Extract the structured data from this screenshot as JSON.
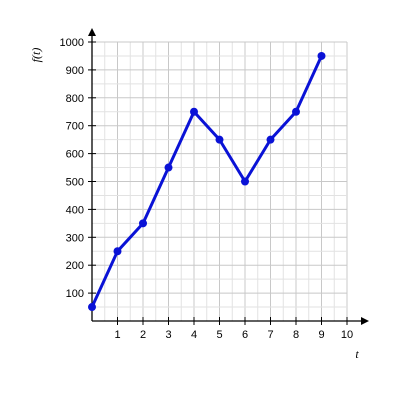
{
  "chart_data": {
    "type": "line",
    "title": "",
    "xlabel": "t",
    "ylabel": "f(t)",
    "xlim": [
      0,
      10
    ],
    "ylim": [
      0,
      1000
    ],
    "x_ticks": [
      1,
      2,
      3,
      4,
      5,
      6,
      7,
      8,
      9,
      10
    ],
    "y_ticks": [
      100,
      200,
      300,
      400,
      500,
      600,
      700,
      800,
      900,
      1000
    ],
    "grid": true,
    "minor_grid_steps": 2,
    "series": [
      {
        "color": "#0a12d6",
        "x": [
          0,
          1,
          2,
          3,
          4,
          5,
          6,
          7,
          8,
          9
        ],
        "y": [
          50,
          250,
          350,
          550,
          750,
          650,
          500,
          650,
          750,
          950
        ]
      }
    ]
  }
}
